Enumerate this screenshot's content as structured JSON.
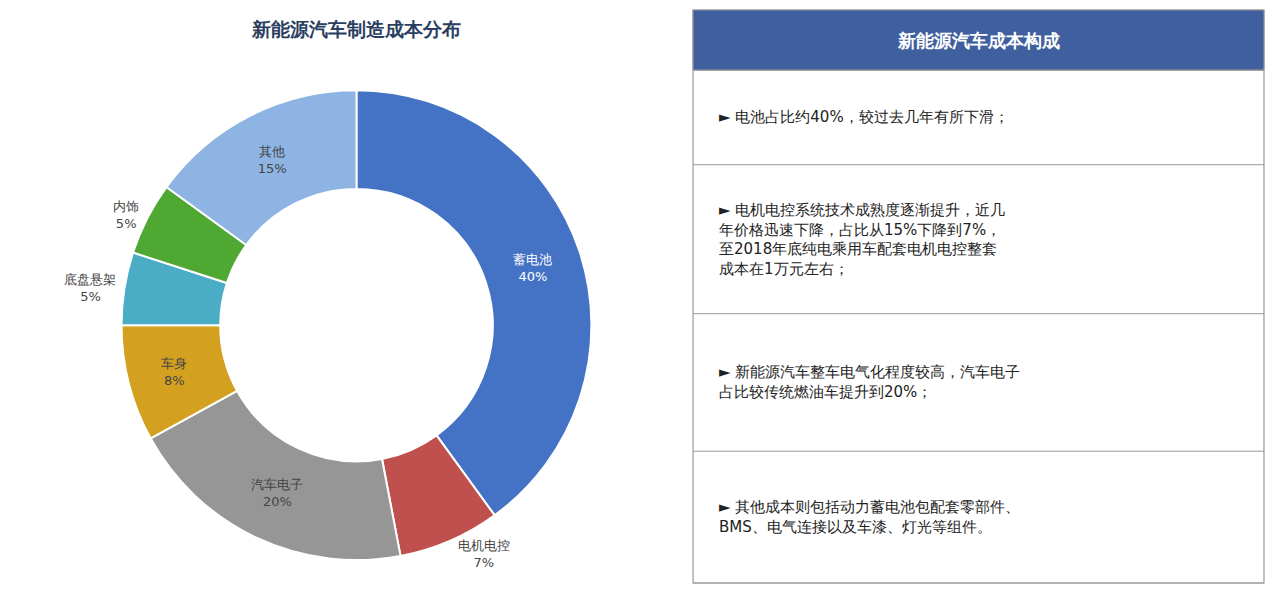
{
  "chart_data": [
    {
      "type": "pie",
      "title": "新能源汽车制造成本分布",
      "categories": [
        "蓄电池",
        "电机电控",
        "汽车电子",
        "车身",
        "底盘悬架",
        "内饰",
        "其他"
      ],
      "values": [
        40,
        7,
        20,
        8,
        5,
        5,
        15
      ],
      "value_labels": [
        "40%",
        "7%",
        "20%",
        "8%",
        "5%",
        "5%",
        "15%"
      ],
      "colors": [
        "#4472C4",
        "#C0504D",
        "#969696",
        "#D4A020",
        "#4BACC6",
        "#4EA832",
        "#8EB4E3"
      ],
      "data_labels": true
    },
    {
      "type": "text",
      "title": "新能源汽车成本构成",
      "color": "#3F5F9F",
      "annotations": [
        "► 电池占比约40%，较过去几年有所下滑；",
        "► 电机电控系统技术成熟度逐渐提升，近几\n年价格迅速下降，占比从15%下降到7%，\n至2018年底纯电乘用车配套电机电控整套\n成本在1万元左右；",
        "► 新能源汽车整车电气化程度较高，汽车电子\n占比较传统燃油车提升到20%；",
        "► 其他成本则包括动力蓄电池包配套零部件、\nBMS、电气连接以及车漆、灯光等组件。"
      ]
    }
  ]
}
